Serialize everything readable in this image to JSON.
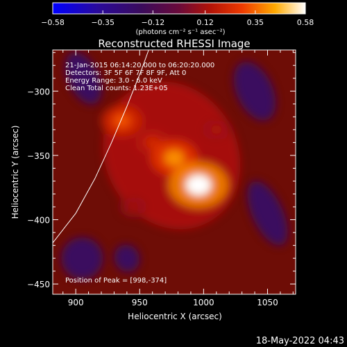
{
  "chart_data": {
    "type": "heatmap",
    "title": "Reconstructed RHESSI Image",
    "xlabel": "Heliocentric X (arcsec)",
    "ylabel": "Heliocentric Y (arcsec)",
    "xlim": [
      882,
      1072
    ],
    "ylim": [
      -458,
      -268
    ],
    "x_ticks": [
      900,
      950,
      1000,
      1050
    ],
    "x_tick_labels": [
      "900",
      "950",
      "1000",
      "1050"
    ],
    "y_ticks": [
      -300,
      -350,
      -400,
      -450
    ],
    "y_tick_labels": [
      "−300",
      "−350",
      "−400",
      "−450"
    ],
    "colorbar": {
      "min": -0.58,
      "max": 0.58,
      "ticks": [
        -0.58,
        -0.35,
        -0.12,
        0.12,
        0.35,
        0.58
      ],
      "tick_labels": [
        "−0.58",
        "−0.35",
        "−0.12",
        "0.12",
        "0.35",
        "0.58"
      ],
      "units": "(photons cm⁻² s⁻¹ asec⁻²)"
    },
    "info_lines": [
      "21-Jan-2015 06:14:20.000 to 06:20:20.000",
      "Detectors: 3F 5F 6F 7F 8F 9F, Att 0",
      "Energy Range: 3.0 - 6.0 keV",
      "Clean     Total counts: 1.23E+05"
    ],
    "peak_label": "Position of Peak = [998,-374]",
    "peak": [
      998,
      -374
    ],
    "limb_points": [
      [
        882,
        -418
      ],
      [
        900,
        -395
      ],
      [
        915,
        -368
      ],
      [
        928,
        -340
      ],
      [
        940,
        -312
      ],
      [
        952,
        -282
      ],
      [
        957,
        -268
      ]
    ],
    "sources": [
      {
        "x": 996,
        "y": -373,
        "amplitude": 0.58
      },
      {
        "x": 977,
        "y": -352,
        "amplitude": 0.4
      },
      {
        "x": 936,
        "y": -323,
        "amplitude": 0.32
      },
      {
        "x": 960,
        "y": -340,
        "amplitude": 0.22
      },
      {
        "x": 1010,
        "y": -330,
        "amplitude": 0.14
      },
      {
        "x": 945,
        "y": -390,
        "amplitude": 0.12
      }
    ]
  },
  "footer": {
    "timestamp": "18-May-2022 04:43"
  }
}
